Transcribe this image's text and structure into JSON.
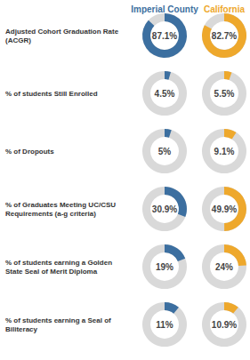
{
  "chart_data": {
    "type": "pie",
    "categories": [
      "Adjusted Cohort Graduation Rate (ACGR)",
      "% of students Still Enrolled",
      "% of Dropouts",
      "% of Graduates Meeting UC/CSU Requirements (a-g criteria)",
      "% of students earning a Golden State Seal of Merit Diploma",
      "% of students earning a Seal of Biliteracy"
    ],
    "series": [
      {
        "name": "Imperial County",
        "color": "#3c6fa0",
        "values": [
          87.1,
          4.5,
          5,
          30.9,
          19,
          11
        ],
        "value_labels": [
          "87.1%",
          "4.5%",
          "5%",
          "30.9%",
          "19%",
          "11%"
        ]
      },
      {
        "name": "California",
        "color": "#eea82c",
        "values": [
          82.7,
          5.5,
          9.1,
          49.9,
          24,
          10.9
        ],
        "value_labels": [
          "82.7%",
          "5.5%",
          "9.1%",
          "49.9%",
          "24%",
          "10.9%"
        ]
      }
    ],
    "ylim": [
      0,
      100
    ],
    "data_labels": true,
    "tick_labels": false
  }
}
